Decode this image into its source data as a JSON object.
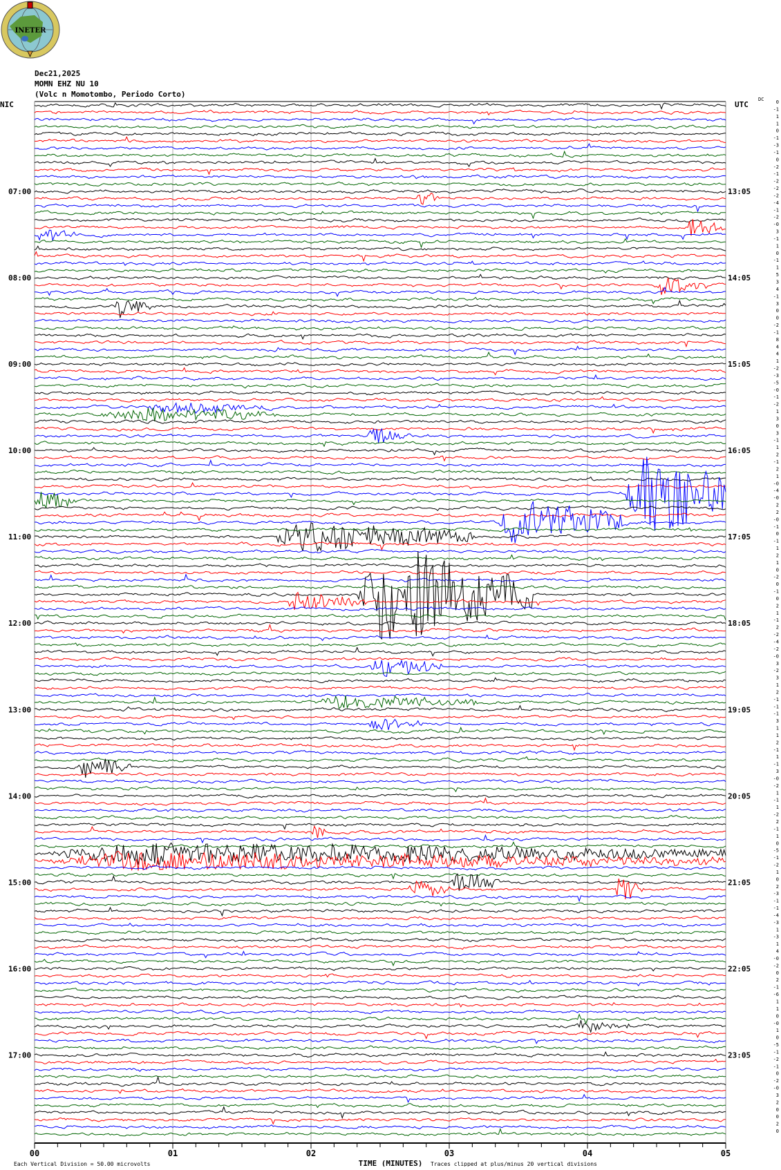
{
  "header": {
    "logo_text": "INETER",
    "date": "Dec21,2025",
    "station": "MOMN EHZ NU 10",
    "description": "(Volc n Momotombo, Periodo Corto)",
    "left_tz": "NIC",
    "right_tz": "UTC",
    "dc_label": "DC"
  },
  "chart_data": {
    "type": "line",
    "subtype": "helicorder",
    "xlabel": "TIME (MINUTES)",
    "x_ticks": [
      "00",
      "01",
      "02",
      "03",
      "04",
      "05"
    ],
    "xlim": [
      0,
      5
    ],
    "minor_ticks_per_minute": 6,
    "grid": "vertical lines each minute",
    "row_minutes": 5,
    "row_count": 144,
    "trace_colors": [
      "#000000",
      "#ff0000",
      "#0000ff",
      "#006400"
    ],
    "left_hour_labels": [
      {
        "row": 12,
        "label": "07:00"
      },
      {
        "row": 24,
        "label": "08:00"
      },
      {
        "row": 36,
        "label": "09:00"
      },
      {
        "row": 48,
        "label": "10:00"
      },
      {
        "row": 60,
        "label": "11:00"
      },
      {
        "row": 72,
        "label": "12:00"
      },
      {
        "row": 84,
        "label": "13:00"
      },
      {
        "row": 96,
        "label": "14:00"
      },
      {
        "row": 108,
        "label": "15:00"
      },
      {
        "row": 120,
        "label": "16:00"
      },
      {
        "row": 132,
        "label": "17:00"
      }
    ],
    "right_hour_labels": [
      {
        "row": 12,
        "label": "13:05"
      },
      {
        "row": 24,
        "label": "14:05"
      },
      {
        "row": 36,
        "label": "15:05"
      },
      {
        "row": 48,
        "label": "16:05"
      },
      {
        "row": 60,
        "label": "17:05"
      },
      {
        "row": 72,
        "label": "18:05"
      },
      {
        "row": 84,
        "label": "19:05"
      },
      {
        "row": 96,
        "label": "20:05"
      },
      {
        "row": 108,
        "label": "21:05"
      },
      {
        "row": 120,
        "label": "22:05"
      },
      {
        "row": 132,
        "label": "23:05"
      }
    ],
    "dc_offsets": [
      "0",
      "-1",
      "1",
      "1",
      "0",
      "-1",
      "-3",
      "-1",
      "0",
      "-2",
      "-1",
      "-2",
      "-2",
      "-2",
      "-4",
      "-1",
      "-2",
      "-0",
      "3",
      "-1",
      "1",
      "0",
      "-1",
      "1",
      "5",
      "3",
      "4",
      "-1",
      "3",
      "0",
      "0",
      "-2",
      "-1",
      "8",
      "4",
      "4",
      "1",
      "-2",
      "-3",
      "-5",
      "-0",
      "-1",
      "-2",
      "1",
      "3",
      "0",
      "3",
      "-1",
      "1",
      "2",
      "-1",
      "2",
      "1",
      "-0",
      "-4",
      "-0",
      "2",
      "2",
      "-0",
      "-1",
      "0",
      "-1",
      "1",
      "2",
      "1",
      "0",
      "-2",
      "0",
      "-1",
      "0",
      "2",
      "1",
      "-1",
      "2",
      "-2",
      "-4",
      "-2",
      "-0",
      "3",
      "-2",
      "3",
      "1",
      "2",
      "-1",
      "-1",
      "-1",
      "3",
      "1",
      "1",
      "2",
      "-1",
      "1",
      "-1",
      "3",
      "-0",
      "-2",
      "1",
      "-1",
      "1",
      "-2",
      "2",
      "-1",
      "1",
      "0",
      "-5",
      "-1",
      "-2",
      "1",
      "0",
      "2",
      "-3",
      "-1",
      "-1",
      "-4",
      "-3",
      "1",
      "-3",
      "1",
      "4",
      "-0",
      "-2",
      "0",
      "2",
      "-1",
      "-6",
      "1",
      "1",
      "0",
      "-0",
      "1",
      "0",
      "-5",
      "-1",
      "-2",
      "-1",
      "0",
      "-2",
      "-0",
      "3",
      "2",
      "0",
      "0",
      "2",
      "0"
    ],
    "events": [
      {
        "row": 13,
        "start_min": 2.76,
        "end_min": 2.92,
        "amplitude_div": 1.2
      },
      {
        "row": 17,
        "start_min": 4.7,
        "end_min": 5.0,
        "amplitude_div": 1.2
      },
      {
        "row": 18,
        "start_min": 0.0,
        "end_min": 0.3,
        "amplitude_div": 1.0
      },
      {
        "row": 25,
        "start_min": 4.48,
        "end_min": 4.86,
        "amplitude_div": 1.4
      },
      {
        "row": 28,
        "start_min": 0.55,
        "end_min": 0.85,
        "amplitude_div": 1.6
      },
      {
        "row": 42,
        "start_min": 0.8,
        "end_min": 1.74,
        "amplitude_div": 0.9
      },
      {
        "row": 43,
        "start_min": 0.45,
        "end_min": 1.74,
        "amplitude_div": 1.1
      },
      {
        "row": 46,
        "start_min": 2.4,
        "end_min": 2.7,
        "amplitude_div": 1.3
      },
      {
        "row": 54,
        "start_min": 4.27,
        "end_min": 5.0,
        "amplitude_div": 7
      },
      {
        "row": 55,
        "start_min": 0.0,
        "end_min": 0.3,
        "amplitude_div": 1.5
      },
      {
        "row": 58,
        "start_min": 3.33,
        "end_min": 4.3,
        "amplitude_div": 3.5
      },
      {
        "row": 60,
        "start_min": 1.7,
        "end_min": 3.2,
        "amplitude_div": 2.2
      },
      {
        "row": 68,
        "start_min": 2.32,
        "end_min": 3.6,
        "amplitude_div": 7
      },
      {
        "row": 69,
        "start_min": 1.8,
        "end_min": 2.4,
        "amplitude_div": 1.3
      },
      {
        "row": 78,
        "start_min": 2.4,
        "end_min": 2.95,
        "amplitude_div": 1.4
      },
      {
        "row": 83,
        "start_min": 2.0,
        "end_min": 3.2,
        "amplitude_div": 1.0
      },
      {
        "row": 86,
        "start_min": 2.4,
        "end_min": 2.8,
        "amplitude_div": 1.0
      },
      {
        "row": 92,
        "start_min": 0.3,
        "end_min": 0.7,
        "amplitude_div": 1.6
      },
      {
        "row": 101,
        "start_min": 2.0,
        "end_min": 2.1,
        "amplitude_div": 1.8
      },
      {
        "row": 104,
        "start_min": 0.0,
        "end_min": 5.0,
        "amplitude_div": 1.6
      },
      {
        "row": 105,
        "start_min": 0.0,
        "end_min": 5.0,
        "amplitude_div": 1.3
      },
      {
        "row": 108,
        "start_min": 3.0,
        "end_min": 3.4,
        "amplitude_div": 1.3
      },
      {
        "row": 109,
        "start_min": 2.7,
        "end_min": 3.0,
        "amplitude_div": 1.4
      },
      {
        "row": 109,
        "start_min": 4.2,
        "end_min": 4.4,
        "amplitude_div": 2.0
      },
      {
        "row": 128,
        "start_min": 3.9,
        "end_min": 4.3,
        "amplitude_div": 1.0
      }
    ],
    "clip_divisions": 20
  },
  "footer": {
    "scale_note": "Each Vertical Division =   50.00 microvolts",
    "clip_note": "Traces clipped at plus/minus 20 vertical divisions"
  }
}
